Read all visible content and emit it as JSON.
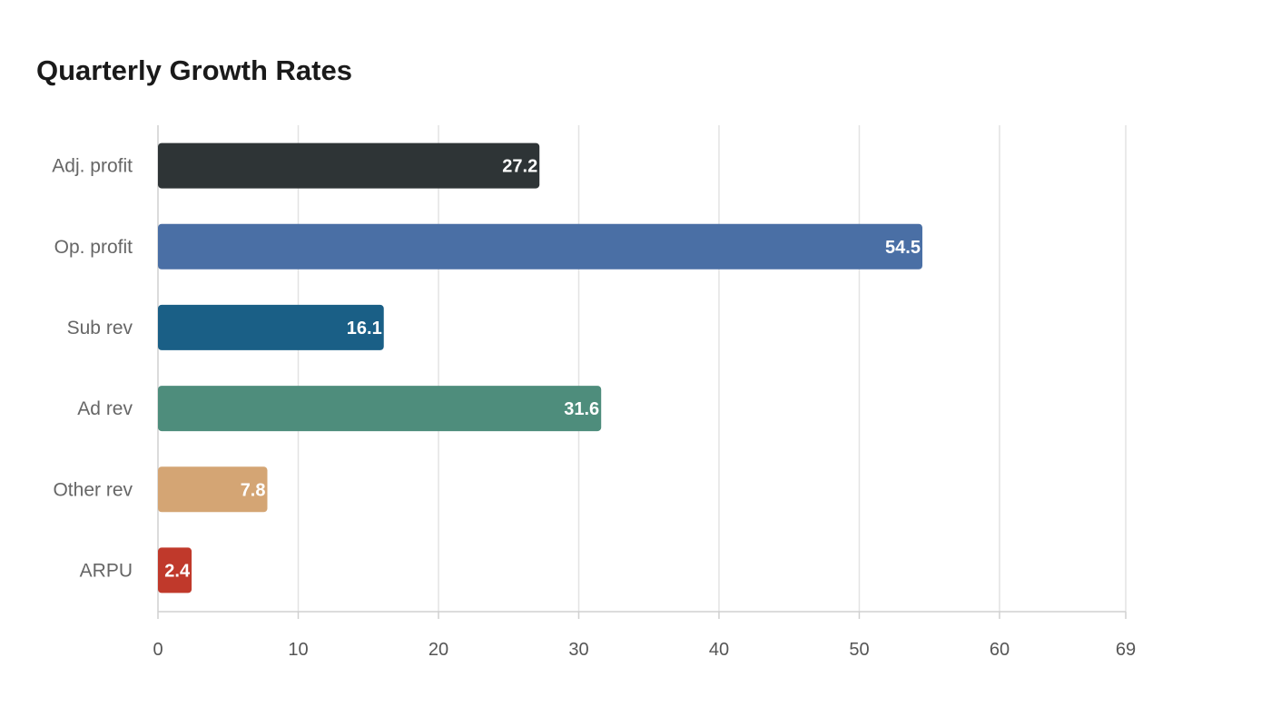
{
  "chart_data": {
    "type": "bar",
    "orientation": "horizontal",
    "title": "Quarterly Growth Rates",
    "xlabel": "",
    "ylabel": "",
    "categories": [
      "Adj. profit",
      "Op. profit",
      "Sub rev",
      "Ad rev",
      "Other rev",
      "ARPU"
    ],
    "values": [
      27.2,
      54.5,
      16.1,
      31.6,
      7.8,
      2.4
    ],
    "colors": [
      "#2e3436",
      "#4a6fa5",
      "#1a5f86",
      "#4e8d7c",
      "#d4a574",
      "#c0392b"
    ],
    "xlim": [
      0,
      69
    ],
    "xticks": [
      "0",
      "10",
      "20",
      "30",
      "40",
      "50",
      "60",
      "69"
    ],
    "xtick_values": [
      0,
      10,
      20,
      30,
      40,
      50,
      60,
      69
    ],
    "grid": true,
    "legend": "none"
  }
}
